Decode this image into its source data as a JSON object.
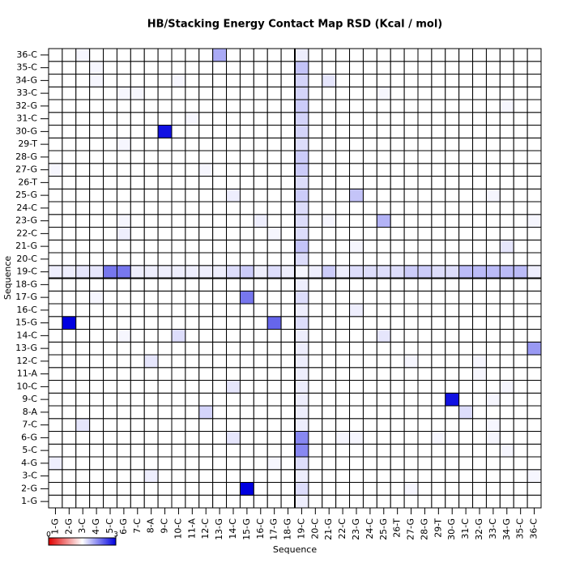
{
  "chart_data": {
    "type": "heatmap",
    "title": "HB/Stacking Energy Contact Map RSD (Kcal / mol)",
    "xlabel": "Sequence",
    "ylabel": "Sequence",
    "categories": [
      "1-G",
      "2-G",
      "3-C",
      "4-G",
      "5-C",
      "6-G",
      "7-C",
      "8-A",
      "9-C",
      "10-C",
      "11-A",
      "12-C",
      "13-G",
      "14-C",
      "15-G",
      "16-C",
      "17-G",
      "18-G",
      "19-C",
      "20-C",
      "21-G",
      "22-C",
      "23-G",
      "24-C",
      "25-G",
      "26-T",
      "27-G",
      "28-G",
      "29-T",
      "30-G",
      "31-C",
      "32-G",
      "33-C",
      "34-G",
      "35-C",
      "36-C"
    ],
    "colormap": [
      "#e00000",
      "#ffffff",
      "#0000e0"
    ],
    "clim": [
      0,
      3
    ],
    "colorbar_ticks": [
      0,
      3
    ],
    "divider_after": 18,
    "z": [
      [
        1.5,
        1.5,
        1.5,
        1.5,
        1.5,
        1.5,
        1.5,
        1.5,
        1.5,
        1.5,
        1.5,
        1.5,
        1.5,
        1.5,
        1.5,
        1.5,
        1.5,
        1.5,
        1.6,
        1.5,
        1.5,
        1.5,
        1.5,
        1.5,
        1.5,
        1.5,
        1.5,
        1.5,
        1.5,
        1.5,
        1.5,
        1.5,
        1.5,
        1.5,
        1.5,
        1.5
      ],
      [
        1.5,
        1.5,
        1.5,
        1.5,
        1.5,
        1.5,
        1.5,
        1.5,
        1.5,
        1.5,
        1.5,
        1.5,
        1.5,
        1.5,
        3.0,
        1.5,
        1.5,
        1.5,
        1.7,
        1.5,
        1.5,
        1.5,
        1.5,
        1.5,
        1.5,
        1.5,
        1.55,
        1.5,
        1.5,
        1.5,
        1.5,
        1.5,
        1.5,
        1.5,
        1.5,
        1.5
      ],
      [
        1.5,
        1.5,
        1.5,
        1.5,
        1.5,
        1.5,
        1.5,
        1.6,
        1.5,
        1.5,
        1.5,
        1.5,
        1.5,
        1.5,
        1.5,
        1.5,
        1.5,
        1.5,
        1.6,
        1.5,
        1.5,
        1.5,
        1.5,
        1.5,
        1.5,
        1.5,
        1.5,
        1.5,
        1.5,
        1.5,
        1.5,
        1.5,
        1.5,
        1.5,
        1.5,
        1.55
      ],
      [
        1.6,
        1.5,
        1.5,
        1.5,
        1.5,
        1.5,
        1.5,
        1.5,
        1.5,
        1.5,
        1.5,
        1.5,
        1.5,
        1.5,
        1.5,
        1.5,
        1.55,
        1.5,
        1.7,
        1.5,
        1.5,
        1.5,
        1.5,
        1.5,
        1.5,
        1.5,
        1.5,
        1.5,
        1.5,
        1.5,
        1.5,
        1.5,
        1.5,
        1.5,
        1.5,
        1.5
      ],
      [
        1.5,
        1.5,
        1.5,
        1.5,
        1.5,
        1.5,
        1.5,
        1.5,
        1.5,
        1.5,
        1.5,
        1.5,
        1.5,
        1.5,
        1.5,
        1.5,
        1.5,
        1.5,
        2.2,
        1.5,
        1.5,
        1.5,
        1.5,
        1.5,
        1.5,
        1.5,
        1.5,
        1.5,
        1.5,
        1.5,
        1.5,
        1.5,
        1.5,
        1.55,
        1.5,
        1.5
      ],
      [
        1.5,
        1.5,
        1.5,
        1.5,
        1.5,
        1.5,
        1.5,
        1.5,
        1.5,
        1.5,
        1.5,
        1.5,
        1.5,
        1.65,
        1.5,
        1.5,
        1.5,
        1.5,
        2.2,
        1.5,
        1.5,
        1.55,
        1.55,
        1.5,
        1.5,
        1.5,
        1.5,
        1.5,
        1.55,
        1.5,
        1.5,
        1.5,
        1.55,
        1.5,
        1.5,
        1.5
      ],
      [
        1.5,
        1.5,
        1.65,
        1.5,
        1.5,
        1.5,
        1.5,
        1.5,
        1.5,
        1.5,
        1.5,
        1.5,
        1.5,
        1.5,
        1.5,
        1.5,
        1.5,
        1.5,
        1.6,
        1.5,
        1.5,
        1.5,
        1.5,
        1.5,
        1.5,
        1.5,
        1.5,
        1.5,
        1.5,
        1.5,
        1.5,
        1.5,
        1.55,
        1.5,
        1.5,
        1.5
      ],
      [
        1.5,
        1.5,
        1.5,
        1.5,
        1.5,
        1.5,
        1.5,
        1.5,
        1.5,
        1.5,
        1.5,
        1.75,
        1.5,
        1.5,
        1.5,
        1.5,
        1.5,
        1.5,
        1.6,
        1.5,
        1.5,
        1.5,
        1.5,
        1.5,
        1.5,
        1.5,
        1.5,
        1.5,
        1.5,
        1.5,
        1.7,
        1.5,
        1.5,
        1.5,
        1.5,
        1.5
      ],
      [
        1.5,
        1.5,
        1.5,
        1.5,
        1.5,
        1.5,
        1.5,
        1.5,
        1.5,
        1.5,
        1.5,
        1.5,
        1.5,
        1.5,
        1.5,
        1.5,
        1.5,
        1.5,
        1.6,
        1.5,
        1.5,
        1.5,
        1.5,
        1.5,
        1.5,
        1.5,
        1.5,
        1.5,
        1.5,
        2.9,
        1.5,
        1.5,
        1.55,
        1.5,
        1.5,
        1.5
      ],
      [
        1.5,
        1.5,
        1.5,
        1.5,
        1.5,
        1.5,
        1.5,
        1.5,
        1.5,
        1.5,
        1.5,
        1.5,
        1.5,
        1.65,
        1.5,
        1.5,
        1.5,
        1.5,
        1.6,
        1.5,
        1.5,
        1.5,
        1.5,
        1.5,
        1.5,
        1.5,
        1.5,
        1.5,
        1.5,
        1.5,
        1.5,
        1.5,
        1.5,
        1.55,
        1.5,
        1.5
      ],
      [
        1.5,
        1.5,
        1.5,
        1.5,
        1.5,
        1.5,
        1.5,
        1.5,
        1.5,
        1.5,
        1.5,
        1.5,
        1.5,
        1.5,
        1.5,
        1.5,
        1.5,
        1.5,
        1.6,
        1.5,
        1.5,
        1.5,
        1.5,
        1.5,
        1.5,
        1.5,
        1.5,
        1.5,
        1.5,
        1.5,
        1.5,
        1.55,
        1.5,
        1.5,
        1.5,
        1.5
      ],
      [
        1.5,
        1.5,
        1.5,
        1.5,
        1.5,
        1.5,
        1.5,
        1.65,
        1.5,
        1.5,
        1.5,
        1.5,
        1.5,
        1.5,
        1.5,
        1.5,
        1.5,
        1.5,
        1.6,
        1.5,
        1.5,
        1.5,
        1.5,
        1.5,
        1.5,
        1.5,
        1.55,
        1.5,
        1.5,
        1.5,
        1.5,
        1.55,
        1.5,
        1.5,
        1.5,
        1.5
      ],
      [
        1.5,
        1.5,
        1.5,
        1.5,
        1.5,
        1.5,
        1.5,
        1.5,
        1.5,
        1.5,
        1.5,
        1.5,
        1.5,
        1.5,
        1.5,
        1.5,
        1.5,
        1.5,
        1.6,
        1.5,
        1.5,
        1.5,
        1.5,
        1.5,
        1.5,
        1.5,
        1.5,
        1.5,
        1.5,
        1.5,
        1.5,
        1.5,
        1.5,
        1.5,
        1.5,
        2.1
      ],
      [
        1.5,
        1.5,
        1.5,
        1.5,
        1.5,
        1.55,
        1.5,
        1.5,
        1.5,
        1.7,
        1.5,
        1.5,
        1.5,
        1.5,
        1.5,
        1.5,
        1.5,
        1.5,
        1.6,
        1.5,
        1.5,
        1.5,
        1.5,
        1.5,
        1.65,
        1.5,
        1.5,
        1.5,
        1.5,
        1.5,
        1.5,
        1.5,
        1.5,
        1.5,
        1.5,
        1.5
      ],
      [
        1.5,
        3.0,
        1.5,
        1.5,
        1.5,
        1.5,
        1.5,
        1.5,
        1.5,
        1.5,
        1.5,
        1.5,
        1.5,
        1.5,
        1.5,
        1.5,
        2.4,
        1.5,
        1.7,
        1.5,
        1.5,
        1.5,
        1.5,
        1.5,
        1.5,
        1.5,
        1.5,
        1.5,
        1.5,
        1.5,
        1.5,
        1.5,
        1.5,
        1.5,
        1.5,
        1.5
      ],
      [
        1.5,
        1.5,
        1.5,
        1.5,
        1.5,
        1.5,
        1.5,
        1.5,
        1.5,
        1.5,
        1.5,
        1.5,
        1.5,
        1.5,
        1.5,
        1.5,
        1.5,
        1.5,
        1.6,
        1.5,
        1.5,
        1.5,
        1.6,
        1.5,
        1.5,
        1.5,
        1.5,
        1.5,
        1.5,
        1.5,
        1.5,
        1.5,
        1.5,
        1.5,
        1.5,
        1.5
      ],
      [
        1.5,
        1.5,
        1.5,
        1.55,
        1.5,
        1.5,
        1.5,
        1.5,
        1.5,
        1.5,
        1.5,
        1.5,
        1.5,
        1.5,
        2.3,
        1.5,
        1.5,
        1.5,
        1.7,
        1.5,
        1.5,
        1.5,
        1.5,
        1.5,
        1.5,
        1.5,
        1.5,
        1.5,
        1.5,
        1.5,
        1.5,
        1.5,
        1.5,
        1.5,
        1.5,
        1.5
      ],
      [
        1.5,
        1.5,
        1.5,
        1.5,
        1.5,
        1.5,
        1.5,
        1.5,
        1.5,
        1.5,
        1.5,
        1.5,
        1.5,
        1.5,
        1.5,
        1.5,
        1.5,
        1.5,
        1.6,
        1.5,
        1.5,
        1.5,
        1.5,
        1.5,
        1.5,
        1.5,
        1.5,
        1.5,
        1.5,
        1.5,
        1.5,
        1.5,
        1.5,
        1.5,
        1.5,
        1.5
      ],
      [
        1.6,
        1.6,
        1.65,
        1.65,
        2.3,
        2.3,
        1.6,
        1.6,
        1.6,
        1.6,
        1.6,
        1.6,
        1.6,
        1.7,
        1.8,
        1.6,
        1.7,
        1.6,
        1.55,
        1.6,
        1.8,
        1.6,
        1.7,
        1.7,
        1.7,
        1.7,
        1.8,
        1.8,
        1.7,
        1.7,
        1.9,
        1.9,
        1.9,
        1.9,
        1.9,
        1.6
      ],
      [
        1.5,
        1.5,
        1.5,
        1.5,
        1.5,
        1.5,
        1.5,
        1.5,
        1.5,
        1.5,
        1.5,
        1.5,
        1.5,
        1.5,
        1.5,
        1.5,
        1.5,
        1.5,
        1.7,
        1.5,
        1.5,
        1.5,
        1.5,
        1.5,
        1.5,
        1.5,
        1.5,
        1.5,
        1.5,
        1.5,
        1.5,
        1.5,
        1.5,
        1.5,
        1.5,
        1.5
      ],
      [
        1.5,
        1.5,
        1.5,
        1.5,
        1.5,
        1.5,
        1.5,
        1.5,
        1.5,
        1.5,
        1.5,
        1.5,
        1.5,
        1.5,
        1.5,
        1.5,
        1.5,
        1.5,
        1.85,
        1.5,
        1.5,
        1.5,
        1.55,
        1.5,
        1.5,
        1.5,
        1.5,
        1.5,
        1.5,
        1.5,
        1.5,
        1.5,
        1.5,
        1.65,
        1.5,
        1.5
      ],
      [
        1.5,
        1.5,
        1.5,
        1.5,
        1.5,
        1.6,
        1.5,
        1.5,
        1.5,
        1.5,
        1.5,
        1.5,
        1.5,
        1.5,
        1.5,
        1.5,
        1.55,
        1.5,
        1.7,
        1.5,
        1.5,
        1.5,
        1.5,
        1.5,
        1.5,
        1.5,
        1.5,
        1.5,
        1.5,
        1.5,
        1.5,
        1.5,
        1.5,
        1.5,
        1.5,
        1.5
      ],
      [
        1.5,
        1.5,
        1.5,
        1.5,
        1.5,
        1.55,
        1.5,
        1.5,
        1.5,
        1.5,
        1.5,
        1.5,
        1.5,
        1.5,
        1.5,
        1.6,
        1.5,
        1.5,
        1.7,
        1.5,
        1.55,
        1.5,
        1.5,
        1.5,
        1.95,
        1.5,
        1.5,
        1.5,
        1.5,
        1.5,
        1.5,
        1.5,
        1.5,
        1.5,
        1.5,
        1.55
      ],
      [
        1.5,
        1.5,
        1.5,
        1.5,
        1.5,
        1.5,
        1.5,
        1.5,
        1.5,
        1.5,
        1.5,
        1.5,
        1.5,
        1.5,
        1.5,
        1.5,
        1.5,
        1.5,
        1.7,
        1.5,
        1.5,
        1.5,
        1.5,
        1.5,
        1.5,
        1.5,
        1.5,
        1.5,
        1.5,
        1.5,
        1.5,
        1.5,
        1.5,
        1.5,
        1.5,
        1.5
      ],
      [
        1.5,
        1.5,
        1.5,
        1.5,
        1.5,
        1.5,
        1.5,
        1.5,
        1.5,
        1.5,
        1.5,
        1.5,
        1.5,
        1.6,
        1.5,
        1.5,
        1.5,
        1.5,
        1.8,
        1.5,
        1.5,
        1.5,
        1.85,
        1.5,
        1.5,
        1.5,
        1.5,
        1.5,
        1.5,
        1.5,
        1.5,
        1.5,
        1.55,
        1.5,
        1.5,
        1.5
      ],
      [
        1.5,
        1.5,
        1.5,
        1.5,
        1.5,
        1.5,
        1.5,
        1.5,
        1.5,
        1.5,
        1.5,
        1.5,
        1.5,
        1.5,
        1.5,
        1.5,
        1.5,
        1.5,
        1.7,
        1.5,
        1.5,
        1.5,
        1.5,
        1.5,
        1.5,
        1.5,
        1.5,
        1.5,
        1.5,
        1.5,
        1.5,
        1.5,
        1.5,
        1.5,
        1.5,
        1.5
      ],
      [
        1.55,
        1.5,
        1.5,
        1.5,
        1.5,
        1.5,
        1.5,
        1.5,
        1.5,
        1.5,
        1.5,
        1.55,
        1.5,
        1.5,
        1.5,
        1.5,
        1.5,
        1.5,
        1.8,
        1.5,
        1.5,
        1.5,
        1.5,
        1.5,
        1.5,
        1.5,
        1.5,
        1.5,
        1.5,
        1.5,
        1.5,
        1.5,
        1.5,
        1.5,
        1.5,
        1.5
      ],
      [
        1.5,
        1.5,
        1.5,
        1.5,
        1.5,
        1.5,
        1.5,
        1.5,
        1.5,
        1.5,
        1.5,
        1.5,
        1.5,
        1.5,
        1.5,
        1.5,
        1.5,
        1.5,
        1.8,
        1.5,
        1.5,
        1.5,
        1.5,
        1.5,
        1.5,
        1.5,
        1.5,
        1.5,
        1.5,
        1.5,
        1.5,
        1.5,
        1.5,
        1.5,
        1.5,
        1.5
      ],
      [
        1.5,
        1.5,
        1.5,
        1.5,
        1.5,
        1.55,
        1.5,
        1.5,
        1.5,
        1.5,
        1.5,
        1.5,
        1.5,
        1.5,
        1.5,
        1.5,
        1.5,
        1.5,
        1.7,
        1.5,
        1.5,
        1.5,
        1.5,
        1.5,
        1.5,
        1.5,
        1.5,
        1.5,
        1.5,
        1.5,
        1.5,
        1.5,
        1.5,
        1.5,
        1.5,
        1.5
      ],
      [
        1.5,
        1.5,
        1.5,
        1.5,
        1.5,
        1.5,
        1.5,
        1.5,
        2.9,
        1.5,
        1.5,
        1.5,
        1.5,
        1.5,
        1.5,
        1.5,
        1.5,
        1.5,
        1.75,
        1.5,
        1.5,
        1.5,
        1.5,
        1.5,
        1.5,
        1.5,
        1.5,
        1.5,
        1.5,
        1.5,
        1.5,
        1.5,
        1.5,
        1.5,
        1.5,
        1.5
      ],
      [
        1.5,
        1.5,
        1.5,
        1.5,
        1.5,
        1.5,
        1.5,
        1.5,
        1.5,
        1.5,
        1.55,
        1.5,
        1.5,
        1.5,
        1.5,
        1.5,
        1.5,
        1.5,
        1.75,
        1.5,
        1.5,
        1.5,
        1.5,
        1.5,
        1.5,
        1.5,
        1.5,
        1.5,
        1.5,
        1.5,
        1.5,
        1.5,
        1.5,
        1.5,
        1.5,
        1.5
      ],
      [
        1.5,
        1.5,
        1.5,
        1.5,
        1.5,
        1.5,
        1.5,
        1.5,
        1.5,
        1.5,
        1.5,
        1.5,
        1.5,
        1.5,
        1.5,
        1.5,
        1.5,
        1.5,
        1.8,
        1.5,
        1.5,
        1.5,
        1.5,
        1.5,
        1.5,
        1.5,
        1.5,
        1.5,
        1.5,
        1.5,
        1.5,
        1.5,
        1.5,
        1.55,
        1.5,
        1.5
      ],
      [
        1.5,
        1.5,
        1.5,
        1.5,
        1.5,
        1.55,
        1.55,
        1.5,
        1.5,
        1.5,
        1.5,
        1.5,
        1.5,
        1.5,
        1.5,
        1.5,
        1.5,
        1.5,
        1.75,
        1.5,
        1.5,
        1.5,
        1.5,
        1.5,
        1.55,
        1.5,
        1.5,
        1.5,
        1.5,
        1.5,
        1.5,
        1.5,
        1.5,
        1.5,
        1.5,
        1.5
      ],
      [
        1.5,
        1.5,
        1.5,
        1.55,
        1.5,
        1.5,
        1.5,
        1.5,
        1.5,
        1.55,
        1.5,
        1.5,
        1.5,
        1.5,
        1.5,
        1.5,
        1.5,
        1.5,
        1.75,
        1.5,
        1.65,
        1.5,
        1.5,
        1.5,
        1.5,
        1.5,
        1.5,
        1.5,
        1.5,
        1.5,
        1.5,
        1.5,
        1.5,
        1.5,
        1.5,
        1.5
      ],
      [
        1.5,
        1.5,
        1.5,
        1.55,
        1.5,
        1.5,
        1.5,
        1.5,
        1.5,
        1.5,
        1.5,
        1.5,
        1.5,
        1.5,
        1.5,
        1.5,
        1.5,
        1.5,
        1.85,
        1.5,
        1.5,
        1.5,
        1.5,
        1.5,
        1.5,
        1.5,
        1.5,
        1.5,
        1.5,
        1.5,
        1.5,
        1.5,
        1.5,
        1.5,
        1.5,
        1.5
      ],
      [
        1.5,
        1.5,
        1.55,
        1.5,
        1.5,
        1.5,
        1.5,
        1.5,
        1.5,
        1.5,
        1.5,
        1.5,
        2.0,
        1.5,
        1.5,
        1.5,
        1.5,
        1.5,
        1.6,
        1.5,
        1.5,
        1.5,
        1.5,
        1.5,
        1.5,
        1.5,
        1.5,
        1.5,
        1.5,
        1.5,
        1.5,
        1.5,
        1.5,
        1.5,
        1.5,
        1.5
      ]
    ]
  }
}
